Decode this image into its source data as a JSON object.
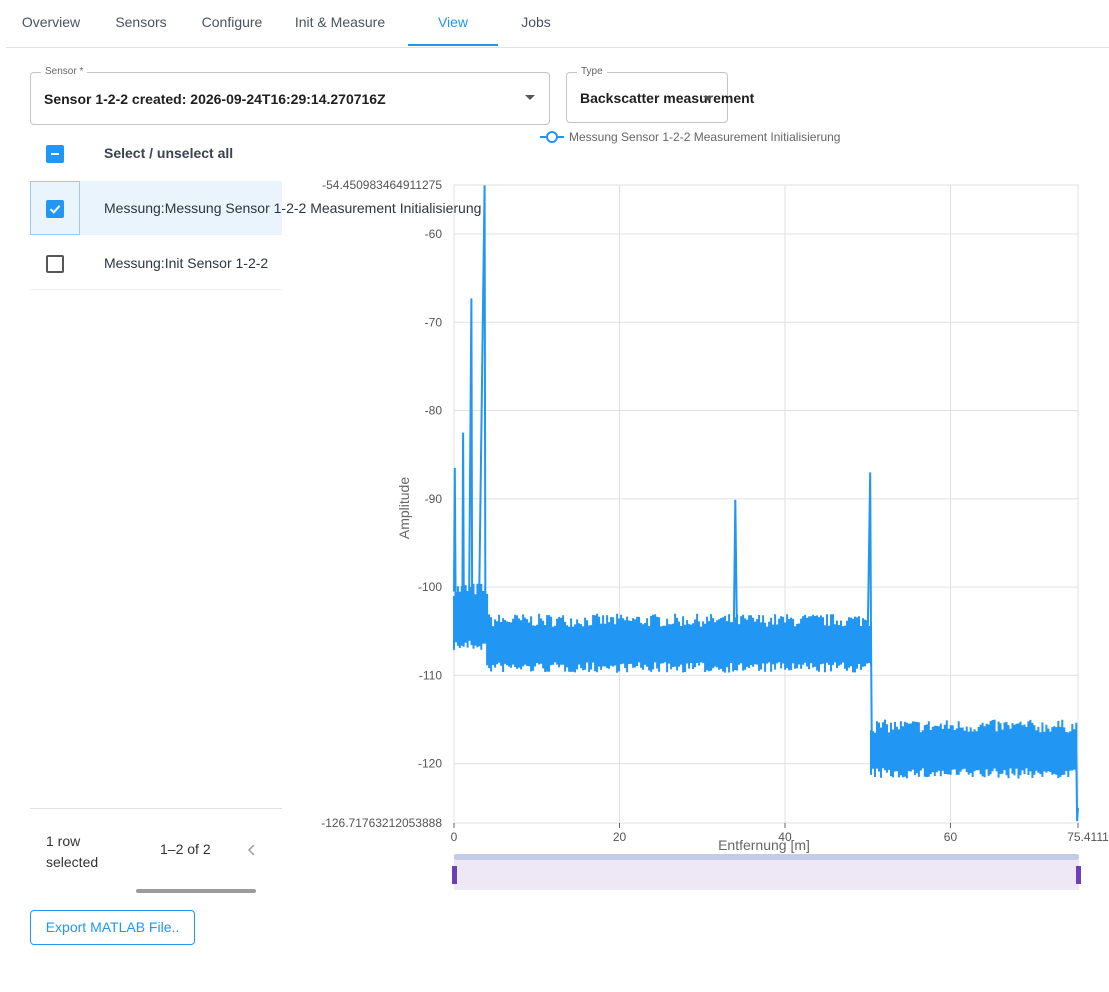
{
  "tabs": [
    {
      "label": "Overview"
    },
    {
      "label": "Sensors"
    },
    {
      "label": "Configure"
    },
    {
      "label": "Init & Measure"
    },
    {
      "label": "View"
    },
    {
      "label": "Jobs"
    }
  ],
  "active_tab": "View",
  "sensor_select": {
    "legend": "Sensor *",
    "value": "Sensor 1-2-2 created: 2026-09-24T16:29:14.270716Z"
  },
  "type_select": {
    "legend": "Type",
    "value": "Backscatter measurement"
  },
  "list": {
    "header_label": "Select / unselect all",
    "rows": [
      {
        "label": "Messung:Messung Sensor 1-2-2 Measurement Initialisierung",
        "checked": true
      },
      {
        "label": "Messung:Init Sensor 1-2-2",
        "checked": false
      }
    ]
  },
  "footer": {
    "selected_text": "1 row selected",
    "pagination": "1–2 of 2"
  },
  "export_label": "Export MATLAB File..",
  "colors": {
    "accent": "#2196f3",
    "series": "#2196f3",
    "zoom_handle": "#6b3fb5",
    "zoom_fill": "#ede7f6"
  },
  "chart_data": {
    "type": "line",
    "legend": [
      "Messung Sensor 1-2-2 Measurement Initialisierung"
    ],
    "xlabel": "Entfernung [m]",
    "ylabel": "Amplitude",
    "xlim": [
      0,
      75.4111
    ],
    "ylim": [
      -126.71763212053888,
      -54.450983464911275
    ],
    "x_ticks": [
      "0",
      "20",
      "40",
      "60",
      "75.4111"
    ],
    "y_ticks": [
      "-54.450983464911275",
      "-60",
      "-70",
      "-80",
      "-90",
      "-100",
      "-110",
      "-120",
      "-126.71763212053888"
    ],
    "grid": true,
    "series": [
      {
        "name": "Messung Sensor 1-2-2 Measurement Initialisierung",
        "points": [
          [
            0,
            -100.5
          ],
          [
            0.1,
            -86.5
          ],
          [
            0.2,
            -103
          ],
          [
            0.5,
            -104
          ],
          [
            1.0,
            -105
          ],
          [
            1.1,
            -82.5
          ],
          [
            1.2,
            -104.5
          ],
          [
            1.8,
            -105
          ],
          [
            2.1,
            -67.3
          ],
          [
            2.2,
            -105
          ],
          [
            3.0,
            -104.5
          ],
          [
            3.7,
            -54.5
          ],
          [
            3.8,
            -105.5
          ],
          [
            4.5,
            -106
          ],
          [
            10,
            -106
          ],
          [
            20,
            -106.3
          ],
          [
            30,
            -106.2
          ],
          [
            33.8,
            -106
          ],
          [
            34.0,
            -90.1
          ],
          [
            34.2,
            -106
          ],
          [
            40,
            -105.9
          ],
          [
            50,
            -105.8
          ],
          [
            50.3,
            -87
          ],
          [
            50.4,
            -105.5
          ],
          [
            50.5,
            -119.5
          ],
          [
            55,
            -118.6
          ],
          [
            60,
            -118.5
          ],
          [
            70,
            -118.3
          ],
          [
            75.2,
            -118.5
          ],
          [
            75.3,
            -126.5
          ],
          [
            75.4111,
            -125
          ]
        ],
        "noise_bands": [
          {
            "x": [
              0,
              4
            ],
            "y": [
              -101,
              -106
            ]
          },
          {
            "x": [
              4,
              50.4
            ],
            "y": [
              -104.5,
              -108.5
            ]
          },
          {
            "x": [
              50.4,
              75.2
            ],
            "y": [
              -116.5,
              -120.5
            ]
          }
        ]
      }
    ]
  }
}
